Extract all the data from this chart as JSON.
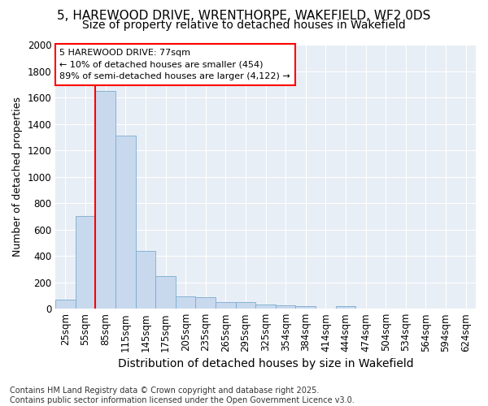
{
  "title_line1": "5, HAREWOOD DRIVE, WRENTHORPE, WAKEFIELD, WF2 0DS",
  "title_line2": "Size of property relative to detached houses in Wakefield",
  "xlabel": "Distribution of detached houses by size in Wakefield",
  "ylabel": "Number of detached properties",
  "categories": [
    "25sqm",
    "55sqm",
    "85sqm",
    "115sqm",
    "145sqm",
    "175sqm",
    "205sqm",
    "235sqm",
    "265sqm",
    "295sqm",
    "325sqm",
    "354sqm",
    "384sqm",
    "414sqm",
    "444sqm",
    "474sqm",
    "504sqm",
    "534sqm",
    "564sqm",
    "594sqm",
    "624sqm"
  ],
  "values": [
    70,
    700,
    1650,
    1310,
    440,
    250,
    95,
    85,
    50,
    50,
    30,
    25,
    20,
    0,
    20,
    0,
    0,
    0,
    0,
    0,
    0
  ],
  "bar_color": "#c8d9ee",
  "bar_edge_color": "#7aabcf",
  "red_line_x": 1.5,
  "annotation_text": "5 HAREWOOD DRIVE: 77sqm\n← 10% of detached houses are smaller (454)\n89% of semi-detached houses are larger (4,122) →",
  "footer_text": "Contains HM Land Registry data © Crown copyright and database right 2025.\nContains public sector information licensed under the Open Government Licence v3.0.",
  "ylim": [
    0,
    2000
  ],
  "yticks": [
    0,
    200,
    400,
    600,
    800,
    1000,
    1200,
    1400,
    1600,
    1800,
    2000
  ],
  "background_color": "#e8eef5",
  "grid_color": "#ffffff",
  "title_fontsize": 11,
  "subtitle_fontsize": 10,
  "xlabel_fontsize": 10,
  "ylabel_fontsize": 9,
  "tick_fontsize": 8.5,
  "footer_fontsize": 7
}
